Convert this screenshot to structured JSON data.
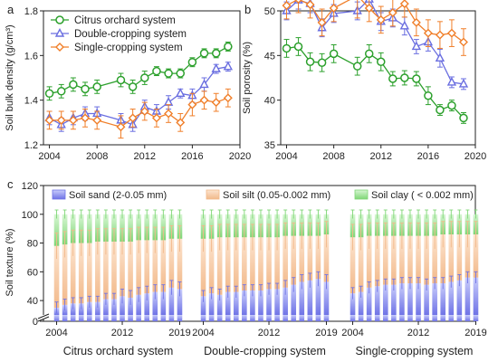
{
  "colors": {
    "citrus": "#2ca02c",
    "double": "#6a6ee0",
    "single": "#f07f2a",
    "sand_light": "#c9cdfb",
    "sand_dark": "#6f73e6",
    "silt_light": "#fce4cf",
    "silt_dark": "#f2b98a",
    "clay_light": "#d7f6d3",
    "clay_dark": "#7fd676"
  },
  "chart_data": [
    {
      "panel": "a",
      "type": "line",
      "ylabel": "Soil bulk density (g/cm³)",
      "xlim": [
        2003.5,
        2020
      ],
      "ylim": [
        1.2,
        1.8
      ],
      "xticks": [
        2004,
        2008,
        2012,
        2016,
        2020
      ],
      "yticks": [
        1.2,
        1.4,
        1.6,
        1.8
      ],
      "legend": "top-left",
      "series": [
        {
          "name": "Citrus orchard system",
          "marker": "circle",
          "color_key": "citrus",
          "x": [
            2004,
            2005,
            2006,
            2007,
            2008,
            2010,
            2011,
            2012,
            2013,
            2014,
            2015,
            2016,
            2017,
            2018,
            2019
          ],
          "y": [
            1.43,
            1.44,
            1.47,
            1.45,
            1.46,
            1.49,
            1.46,
            1.5,
            1.53,
            1.52,
            1.52,
            1.57,
            1.61,
            1.61,
            1.64
          ],
          "err": [
            0.03,
            0.03,
            0.03,
            0.03,
            0.03,
            0.03,
            0.03,
            0.03,
            0.02,
            0.02,
            0.02,
            0.02,
            0.02,
            0.02,
            0.02
          ]
        },
        {
          "name": "Double-cropping system",
          "marker": "triangle",
          "color_key": "double",
          "x": [
            2004,
            2005,
            2006,
            2007,
            2008,
            2010,
            2011,
            2012,
            2013,
            2014,
            2015,
            2016,
            2017,
            2018,
            2019
          ],
          "y": [
            1.32,
            1.29,
            1.32,
            1.34,
            1.34,
            1.31,
            1.29,
            1.37,
            1.35,
            1.39,
            1.43,
            1.42,
            1.47,
            1.54,
            1.55
          ],
          "err": [
            0.03,
            0.03,
            0.03,
            0.03,
            0.03,
            0.03,
            0.03,
            0.03,
            0.03,
            0.03,
            0.02,
            0.03,
            0.03,
            0.02,
            0.02
          ]
        },
        {
          "name": "Single-cropping system",
          "marker": "diamond",
          "color_key": "single",
          "x": [
            2004,
            2005,
            2006,
            2007,
            2008,
            2010,
            2011,
            2012,
            2013,
            2014,
            2015,
            2016,
            2017,
            2018,
            2019
          ],
          "y": [
            1.31,
            1.31,
            1.31,
            1.32,
            1.31,
            1.28,
            1.32,
            1.35,
            1.32,
            1.34,
            1.3,
            1.38,
            1.4,
            1.39,
            1.41
          ],
          "err": [
            0.04,
            0.04,
            0.04,
            0.04,
            0.04,
            0.05,
            0.04,
            0.04,
            0.04,
            0.04,
            0.04,
            0.05,
            0.04,
            0.04,
            0.04
          ]
        }
      ]
    },
    {
      "panel": "b",
      "type": "line",
      "ylabel": "Soil porosity (%)",
      "xlim": [
        2003.5,
        2020
      ],
      "ylim": [
        35,
        50
      ],
      "xticks": [
        2004,
        2008,
        2012,
        2016,
        2020
      ],
      "yticks": [
        35,
        40,
        45,
        50
      ],
      "series": [
        {
          "name": "Citrus orchard system",
          "marker": "circle",
          "color_key": "citrus",
          "x": [
            2004,
            2005,
            2006,
            2007,
            2008,
            2010,
            2011,
            2012,
            2013,
            2014,
            2015,
            2016,
            2017,
            2018,
            2019
          ],
          "y": [
            45.8,
            46.0,
            44.3,
            44.2,
            45.2,
            43.8,
            45.2,
            44.3,
            42.4,
            42.5,
            42.4,
            40.5,
            38.9,
            39.4,
            38.0
          ],
          "err": [
            1.0,
            1.0,
            1.0,
            1.0,
            1.0,
            1.0,
            1.0,
            1.0,
            0.8,
            0.8,
            0.8,
            1.0,
            0.6,
            0.6,
            0.6
          ]
        },
        {
          "name": "Double-cropping system",
          "marker": "triangle",
          "color_key": "double",
          "x": [
            2004,
            2005,
            2006,
            2007,
            2008,
            2010,
            2011,
            2012,
            2013,
            2014,
            2015,
            2016,
            2017,
            2018,
            2019
          ],
          "y": [
            50.0,
            51.2,
            50.8,
            48.1,
            49.7,
            50.0,
            51.3,
            48.8,
            49.2,
            48.3,
            46.0,
            46.5,
            44.7,
            42.0,
            41.8
          ],
          "err": [
            1.0,
            1.0,
            1.0,
            1.0,
            1.0,
            1.0,
            1.0,
            1.0,
            1.0,
            1.0,
            0.8,
            1.0,
            1.0,
            0.6,
            0.6
          ]
        },
        {
          "name": "Single-cropping system",
          "marker": "diamond",
          "color_key": "single",
          "x": [
            2004,
            2005,
            2006,
            2007,
            2008,
            2010,
            2011,
            2012,
            2013,
            2014,
            2015,
            2016,
            2017,
            2018,
            2019
          ],
          "y": [
            50.6,
            51.3,
            50.7,
            48.7,
            50.3,
            51.7,
            50.3,
            49.0,
            49.8,
            50.8,
            48.7,
            47.5,
            47.3,
            47.5,
            46.5
          ],
          "err": [
            1.5,
            1.5,
            1.5,
            1.5,
            1.5,
            2.5,
            1.5,
            1.5,
            1.5,
            1.5,
            1.5,
            1.5,
            1.5,
            1.5,
            1.5
          ]
        }
      ]
    },
    {
      "panel": "c",
      "type": "bar",
      "stacked": true,
      "ylabel": "Soil texture (%)",
      "ylim": [
        0,
        120
      ],
      "yticks": [
        0,
        40,
        60,
        80,
        100,
        120
      ],
      "axis_break": [
        8,
        30
      ],
      "legend": "top",
      "components": [
        {
          "name": "Soil sand (2-0.05 mm)",
          "color_key": "sand"
        },
        {
          "name": "Soil silt (0.05-0.002 mm)",
          "color_key": "silt"
        },
        {
          "name": "Soil clay ( < 0.002 mm)",
          "color_key": "clay"
        }
      ],
      "groups": [
        {
          "name": "Citrus orchard system",
          "tick_labels": [
            "2004",
            "2012",
            "2019"
          ],
          "x": [
            2004,
            2005,
            2006,
            2007,
            2008,
            2009,
            2010,
            2011,
            2012,
            2013,
            2014,
            2015,
            2016,
            2017,
            2018,
            2019
          ],
          "sand": [
            35,
            37,
            38,
            38,
            39,
            39,
            41,
            41,
            43,
            42,
            44,
            45,
            46,
            46,
            49,
            48
          ],
          "sand_err": [
            4,
            4,
            4,
            4,
            4,
            4,
            4,
            4,
            5,
            5,
            5,
            5,
            5,
            5,
            5,
            5
          ],
          "silt_top": [
            78,
            79,
            80,
            80,
            80,
            81,
            81,
            81,
            81,
            81,
            82,
            82,
            82,
            82,
            83,
            83
          ],
          "silt_err": [
            9,
            9,
            9,
            9,
            9,
            9,
            9,
            9,
            9,
            9,
            9,
            9,
            9,
            9,
            9,
            9
          ],
          "total": [
            100,
            100,
            100,
            100,
            100,
            100,
            100,
            100,
            100,
            100,
            100,
            100,
            100,
            100,
            100,
            100
          ],
          "total_err": [
            3,
            3,
            3,
            3,
            3,
            3,
            3,
            3,
            3,
            3,
            3,
            3,
            3,
            3,
            3,
            3
          ]
        },
        {
          "name": "Double-cropping system",
          "tick_labels": [
            "2004",
            "2012",
            "2019"
          ],
          "x": [
            2004,
            2005,
            2006,
            2007,
            2008,
            2009,
            2010,
            2011,
            2012,
            2013,
            2014,
            2015,
            2016,
            2017,
            2018,
            2019
          ],
          "sand": [
            43,
            45,
            44,
            46,
            46,
            47,
            47,
            47,
            48,
            48,
            49,
            51,
            53,
            54,
            55,
            53
          ],
          "sand_err": [
            4,
            4,
            4,
            4,
            4,
            4,
            4,
            4,
            4,
            4,
            5,
            5,
            5,
            5,
            5,
            5
          ],
          "silt_top": [
            83,
            83,
            84,
            84,
            84,
            84,
            84,
            84,
            84,
            84,
            85,
            85,
            85,
            85,
            85,
            86
          ],
          "silt_err": [
            9,
            9,
            9,
            9,
            9,
            9,
            9,
            9,
            9,
            9,
            9,
            9,
            9,
            9,
            9,
            9
          ],
          "total": [
            100,
            100,
            100,
            100,
            100,
            100,
            100,
            100,
            100,
            100,
            100,
            100,
            100,
            100,
            100,
            100
          ],
          "total_err": [
            3,
            3,
            3,
            3,
            3,
            3,
            3,
            3,
            3,
            3,
            3,
            3,
            3,
            3,
            3,
            3
          ]
        },
        {
          "name": "Single-cropping system",
          "tick_labels": [
            "2004",
            "2012",
            "2019"
          ],
          "x": [
            2004,
            2005,
            2006,
            2007,
            2008,
            2009,
            2010,
            2011,
            2012,
            2013,
            2014,
            2015,
            2016,
            2017,
            2018,
            2019
          ],
          "sand": [
            45,
            46,
            49,
            50,
            51,
            51,
            52,
            52,
            52,
            51,
            52,
            52,
            53,
            54,
            56,
            56
          ],
          "sand_err": [
            4,
            4,
            4,
            4,
            4,
            4,
            4,
            4,
            4,
            4,
            4,
            4,
            4,
            4,
            4,
            4
          ],
          "silt_top": [
            84,
            84,
            85,
            85,
            85,
            85,
            85,
            85,
            85,
            85,
            85,
            86,
            86,
            86,
            86,
            86
          ],
          "silt_err": [
            9,
            9,
            9,
            9,
            9,
            9,
            9,
            9,
            9,
            9,
            9,
            9,
            9,
            9,
            9,
            9
          ],
          "total": [
            100,
            100,
            100,
            100,
            100,
            100,
            100,
            100,
            100,
            100,
            100,
            100,
            100,
            100,
            100,
            100
          ],
          "total_err": [
            3,
            3,
            3,
            3,
            3,
            3,
            3,
            3,
            3,
            3,
            3,
            3,
            3,
            3,
            3,
            3
          ]
        }
      ]
    }
  ]
}
